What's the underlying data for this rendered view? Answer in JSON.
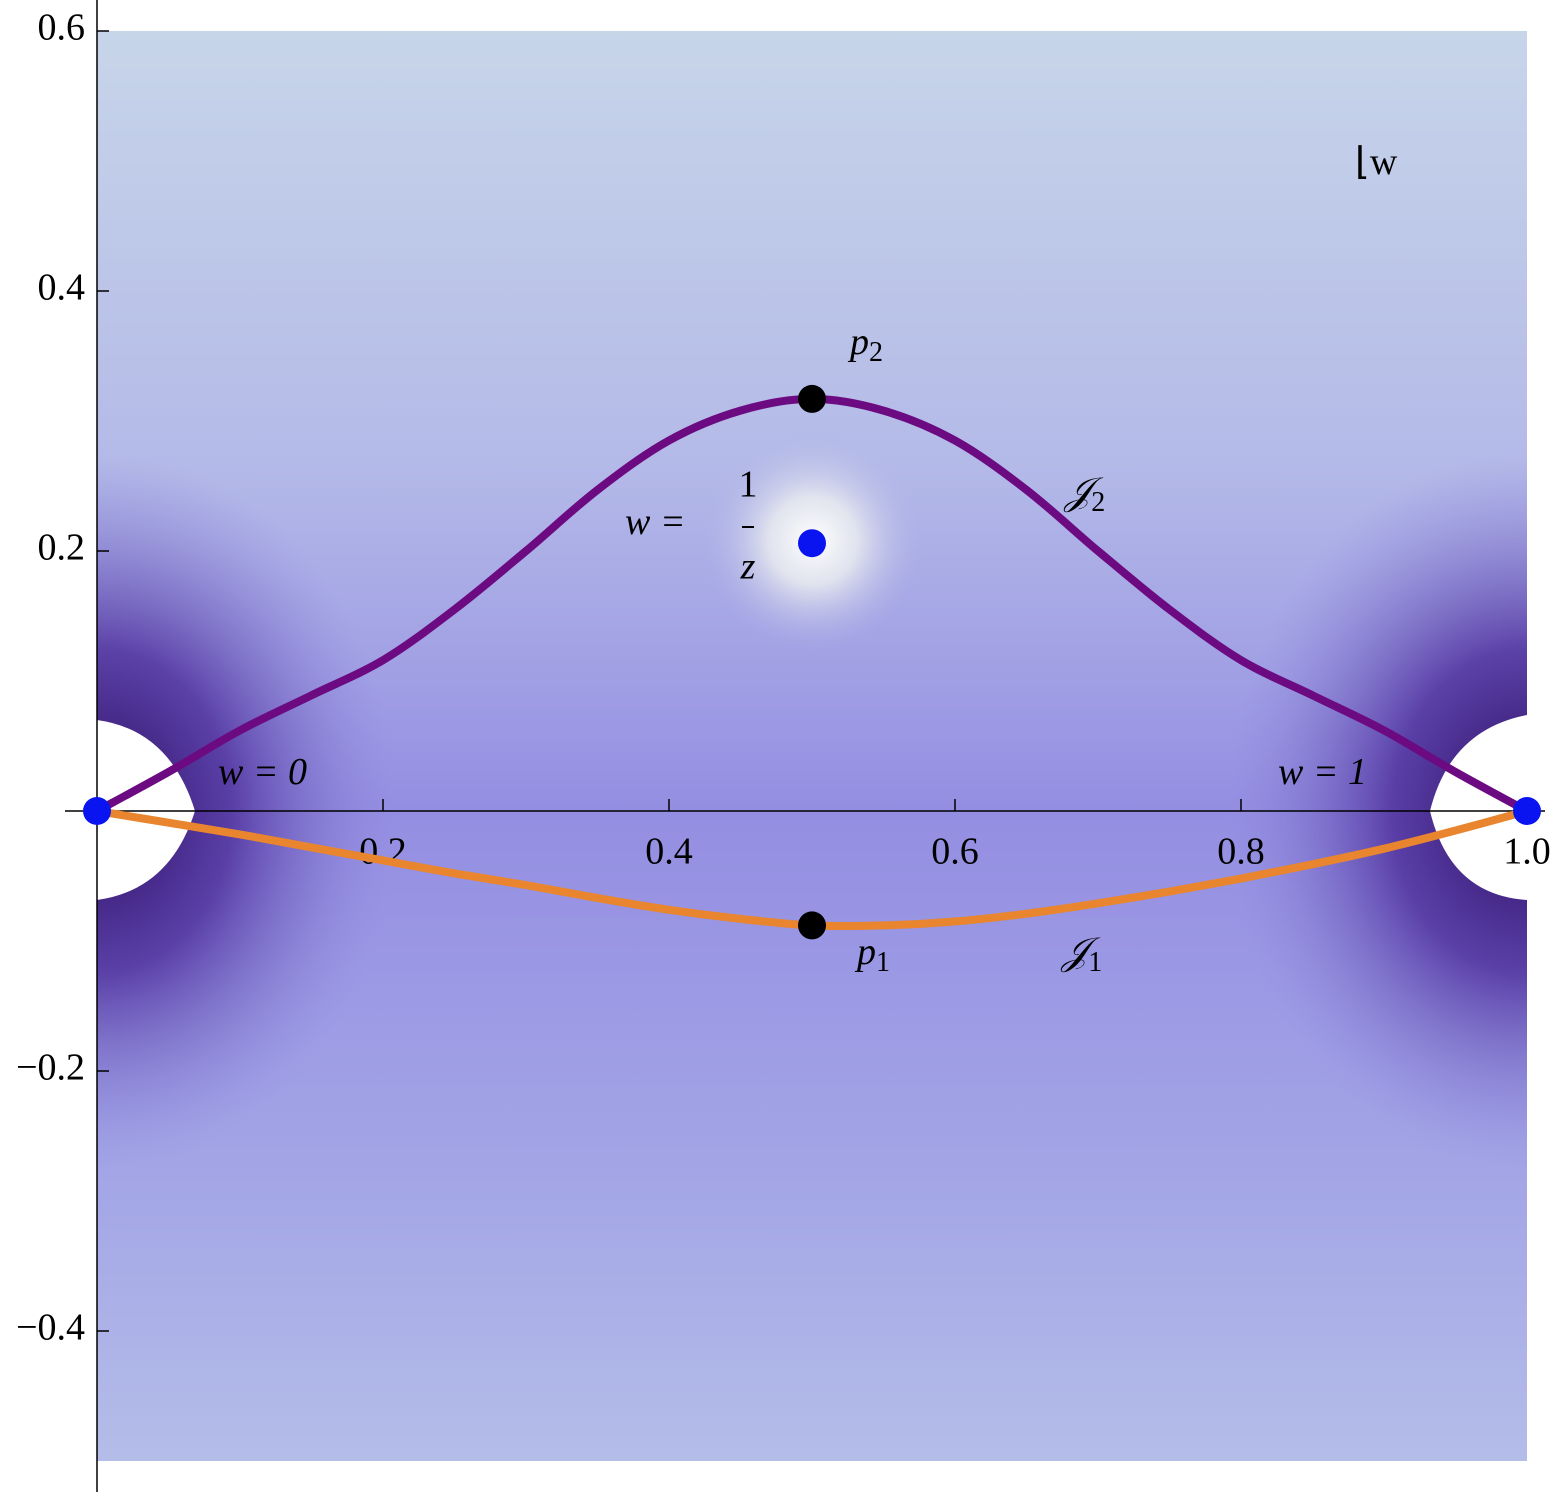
{
  "chart_data": {
    "type": "line",
    "xlim": [
      0,
      1
    ],
    "ylim": [
      -0.5,
      0.6
    ],
    "xticks": [
      0.2,
      0.4,
      0.6,
      0.8,
      {
        "value": 1,
        "label": "1.0"
      }
    ],
    "yticks": [
      {
        "value": -0.4,
        "label": "−0.4"
      },
      {
        "value": -0.2,
        "label": "−0.2"
      },
      0.2,
      0.4,
      0.6
    ],
    "x": [
      0,
      0.05,
      0.1,
      0.15,
      0.2,
      0.25,
      0.3,
      0.35,
      0.4,
      0.45,
      0.5,
      0.55,
      0.6,
      0.65,
      0.7,
      0.75,
      0.8,
      0.85,
      0.9,
      0.95,
      1
    ],
    "series": [
      {
        "color": "#6c0a82",
        "values": [
          0,
          0.03,
          0.062,
          0.089,
          0.116,
          0.155,
          0.2,
          0.247,
          0.285,
          0.308,
          0.317,
          0.308,
          0.285,
          0.247,
          0.2,
          0.155,
          0.116,
          0.089,
          0.062,
          0.03,
          0
        ]
      },
      {
        "color": "#e8852e",
        "values": [
          0,
          -0.009,
          -0.018,
          -0.028,
          -0.038,
          -0.048,
          -0.057,
          -0.067,
          -0.076,
          -0.083,
          -0.088,
          -0.088,
          -0.085,
          -0.079,
          -0.071,
          -0.062,
          -0.052,
          -0.041,
          -0.029,
          -0.015,
          0
        ]
      }
    ],
    "points": [
      {
        "x": 0,
        "y": 0,
        "color": "#0a14f0"
      },
      {
        "x": 0.5,
        "y": 0.206,
        "color": "#0a14f0"
      },
      {
        "x": 1,
        "y": 0,
        "color": "#0a14f0"
      },
      {
        "x": 0.5,
        "y": 0.317,
        "color": "#000000"
      },
      {
        "x": 0.5,
        "y": -0.088,
        "color": "#000000"
      }
    ],
    "annotations": [
      {
        "text": "w = 0"
      },
      {
        "text": "w = 1"
      },
      {
        "text": "p",
        "sub": "2"
      },
      {
        "text": "p",
        "sub": "1"
      },
      {
        "text": "𝒥",
        "sub": "2"
      },
      {
        "text": "𝒥",
        "sub": "1"
      },
      {
        "text": "w =",
        "numerator": "1",
        "denominator": "z"
      },
      {
        "text": "⌊w"
      }
    ]
  }
}
